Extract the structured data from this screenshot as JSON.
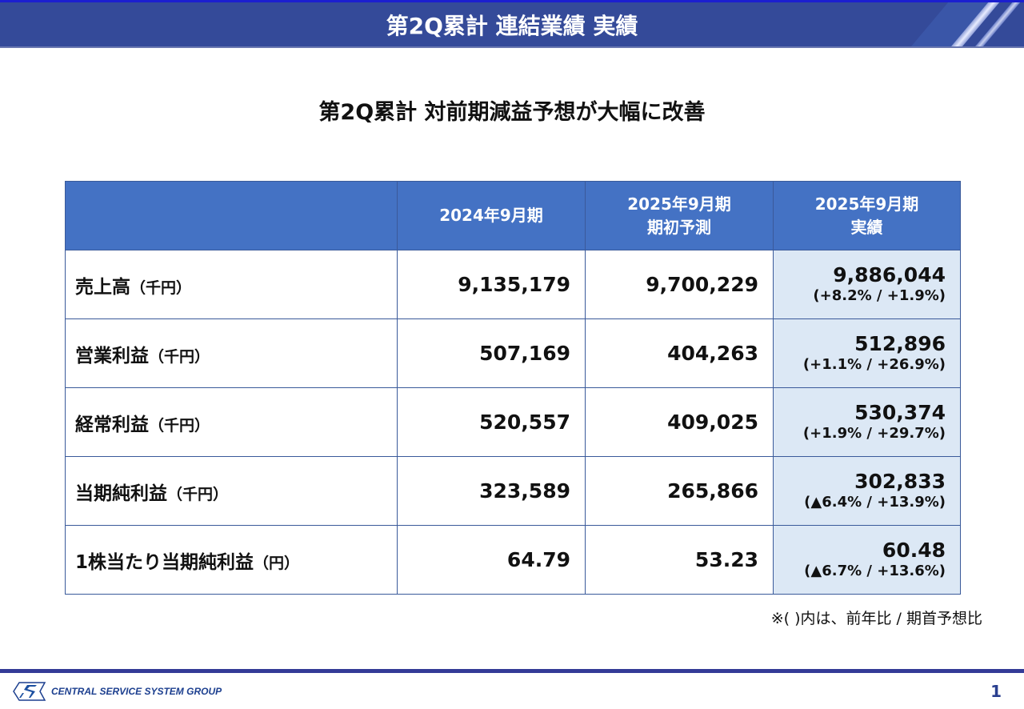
{
  "header": {
    "title": "第2Q累計 連結業績 実績"
  },
  "subtitle": "第2Q累計 対前期減益予想が大幅に改善",
  "table": {
    "columns": [
      "",
      "2024年9月期",
      [
        "2025年9月期",
        "期初予測"
      ],
      [
        "2025年9月期",
        "実績"
      ]
    ],
    "rows": [
      {
        "label": "売上高",
        "unit": "（千円）",
        "prev": "9,135,179",
        "forecast": "9,700,229",
        "actual": "9,886,044",
        "ratio": "(+8.2% / +1.9%)"
      },
      {
        "label": "営業利益",
        "unit": "（千円）",
        "prev": "507,169",
        "forecast": "404,263",
        "actual": "512,896",
        "ratio": "(+1.1% / +26.9%)"
      },
      {
        "label": "経常利益",
        "unit": "（千円）",
        "prev": "520,557",
        "forecast": "409,025",
        "actual": "530,374",
        "ratio": "(+1.9% / +29.7%)"
      },
      {
        "label": "当期純利益",
        "unit": "（千円）",
        "prev": "323,589",
        "forecast": "265,866",
        "actual": "302,833",
        "ratio": "(▲6.4% / +13.9%)"
      },
      {
        "label": "1株当たり当期純利益",
        "unit": "（円）",
        "prev": "64.79",
        "forecast": "53.23",
        "actual": "60.48",
        "ratio": "(▲6.7% / +13.6%)"
      }
    ]
  },
  "note": "※( )内は、前年比 / 期首予想比",
  "footer": {
    "logo_text": "CENTRAL SERVICE SYSTEM GROUP",
    "page": "1"
  }
}
